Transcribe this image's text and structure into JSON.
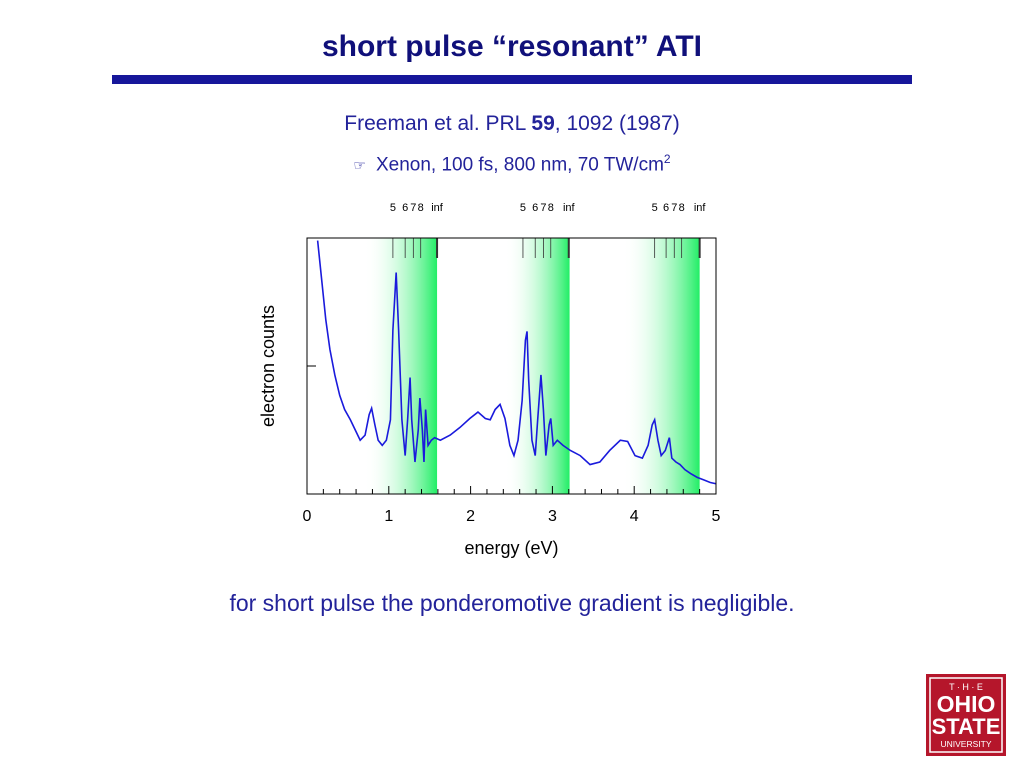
{
  "slide": {
    "title": "short pulse “resonant” ATI",
    "citation": {
      "prefix": "Freeman et al. PRL",
      "volume": "59",
      "suffix": ", 1092 (1987)"
    },
    "conditions": {
      "text": "Xenon, 100 fs, 800 nm, 70 TW/cm",
      "superscript": "2"
    },
    "conclusion": "for short pulse the ponderomotive gradient is negligible.",
    "logo": [
      "T · H · E",
      "OHIO",
      "STATE",
      "UNIVERSITY"
    ]
  },
  "chart_data": {
    "type": "line",
    "xlabel": "energy (eV)",
    "ylabel": "electron counts",
    "xlim": [
      0,
      5
    ],
    "xticks": [
      0,
      1,
      2,
      3,
      4,
      5
    ],
    "xminorticks": [
      0.2,
      0.4,
      0.6,
      0.8,
      1.2,
      1.4,
      1.6,
      1.8,
      2.2,
      2.4,
      2.6,
      2.8,
      3.2,
      3.4,
      3.6,
      3.8,
      4.2,
      4.4,
      4.6,
      4.8
    ],
    "ylim": [
      0,
      2
    ],
    "yticks": [
      1
    ],
    "color": "#1a1adc",
    "shaded_regions": [
      [
        0.7,
        1.59
      ],
      [
        2.42,
        3.21
      ],
      [
        3.86,
        4.8
      ]
    ],
    "shade_color": "#22ee66",
    "level_markers": [
      [
        {
          "label": "5",
          "x": 1.05
        },
        {
          "label": "6",
          "x": 1.2
        },
        {
          "label": "7",
          "x": 1.3
        },
        {
          "label": "8",
          "x": 1.39
        },
        {
          "label": "inf",
          "x": 1.59
        }
      ],
      [
        {
          "label": "5",
          "x": 2.64
        },
        {
          "label": "6",
          "x": 2.79
        },
        {
          "label": "7",
          "x": 2.89
        },
        {
          "label": "8",
          "x": 2.98
        },
        {
          "label": "inf",
          "x": 3.2
        }
      ],
      [
        {
          "label": "5",
          "x": 4.25
        },
        {
          "label": "6",
          "x": 4.39
        },
        {
          "label": "7",
          "x": 4.49
        },
        {
          "label": "8",
          "x": 4.58
        },
        {
          "label": "inf",
          "x": 4.8
        }
      ]
    ],
    "x": [
      0.13,
      0.18,
      0.23,
      0.28,
      0.34,
      0.4,
      0.46,
      0.53,
      0.59,
      0.65,
      0.71,
      0.76,
      0.79,
      0.83,
      0.87,
      0.92,
      0.97,
      1.02,
      1.05,
      1.09,
      1.12,
      1.16,
      1.2,
      1.23,
      1.26,
      1.28,
      1.32,
      1.36,
      1.38,
      1.41,
      1.43,
      1.45,
      1.48,
      1.52,
      1.56,
      1.63,
      1.75,
      1.87,
      1.99,
      2.09,
      2.18,
      2.24,
      2.3,
      2.36,
      2.42,
      2.48,
      2.53,
      2.58,
      2.63,
      2.67,
      2.69,
      2.71,
      2.75,
      2.79,
      2.82,
      2.86,
      2.89,
      2.92,
      2.96,
      2.98,
      3.01,
      3.06,
      3.13,
      3.22,
      3.34,
      3.46,
      3.58,
      3.7,
      3.83,
      3.92,
      4.01,
      4.1,
      4.17,
      4.22,
      4.25,
      4.29,
      4.33,
      4.38,
      4.43,
      4.46,
      4.51,
      4.56,
      4.62,
      4.69,
      4.77,
      4.85,
      4.93,
      5.0
    ],
    "values": [
      1.98,
      1.67,
      1.36,
      1.13,
      0.93,
      0.77,
      0.66,
      0.58,
      0.5,
      0.42,
      0.46,
      0.62,
      0.67,
      0.54,
      0.42,
      0.38,
      0.42,
      0.58,
      1.28,
      1.73,
      1.28,
      0.58,
      0.3,
      0.58,
      0.91,
      0.58,
      0.25,
      0.5,
      0.75,
      0.5,
      0.25,
      0.66,
      0.38,
      0.42,
      0.44,
      0.42,
      0.46,
      0.52,
      0.59,
      0.64,
      0.59,
      0.58,
      0.66,
      0.7,
      0.59,
      0.38,
      0.3,
      0.42,
      0.73,
      1.2,
      1.27,
      0.89,
      0.42,
      0.3,
      0.58,
      0.93,
      0.66,
      0.3,
      0.54,
      0.59,
      0.38,
      0.42,
      0.38,
      0.34,
      0.3,
      0.23,
      0.25,
      0.34,
      0.42,
      0.41,
      0.3,
      0.28,
      0.38,
      0.54,
      0.58,
      0.42,
      0.3,
      0.34,
      0.44,
      0.28,
      0.25,
      0.23,
      0.19,
      0.16,
      0.13,
      0.11,
      0.09,
      0.08
    ]
  }
}
